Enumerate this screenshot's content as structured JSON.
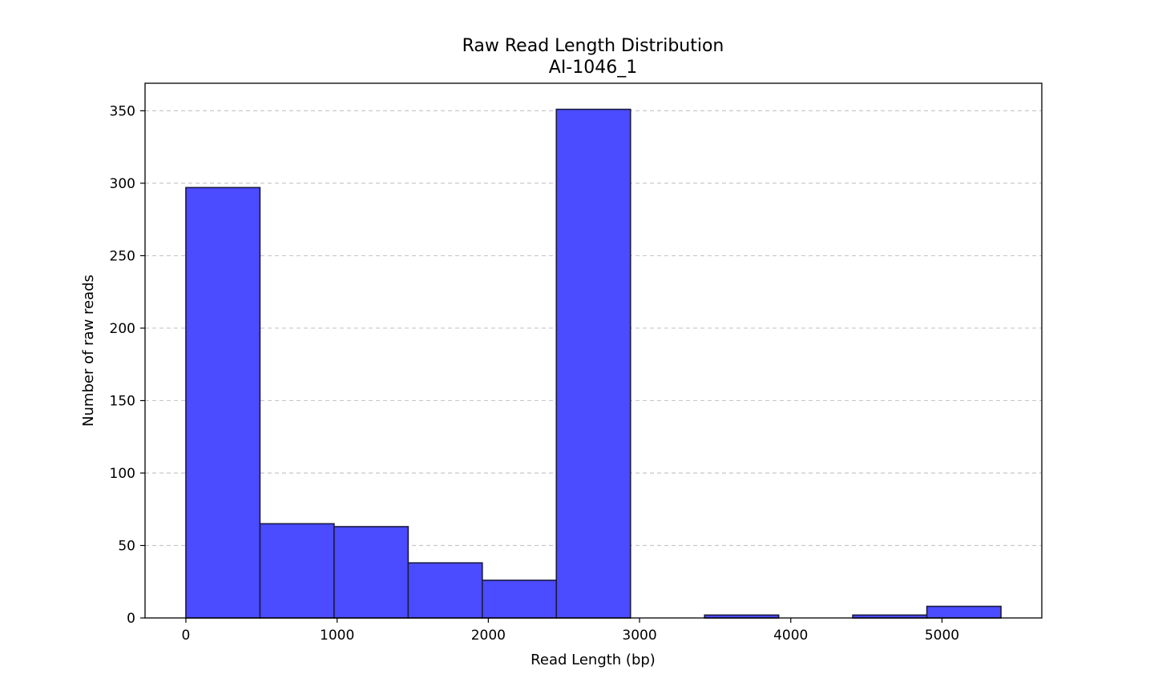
{
  "chart_data": {
    "type": "bar",
    "title": "Raw Read Length Distribution",
    "subtitle": "AI-1046_1",
    "xlabel": "Read Length (bp)",
    "ylabel": "Number of raw reads",
    "bins": [
      {
        "x0": 0,
        "x1": 490,
        "count": 297
      },
      {
        "x0": 490,
        "x1": 980,
        "count": 65
      },
      {
        "x0": 980,
        "x1": 1470,
        "count": 63
      },
      {
        "x0": 1470,
        "x1": 1960,
        "count": 38
      },
      {
        "x0": 1960,
        "x1": 2450,
        "count": 26
      },
      {
        "x0": 2450,
        "x1": 2940,
        "count": 351
      },
      {
        "x0": 2940,
        "x1": 3430,
        "count": 0
      },
      {
        "x0": 3430,
        "x1": 3920,
        "count": 2
      },
      {
        "x0": 3920,
        "x1": 4410,
        "count": 0
      },
      {
        "x0": 4410,
        "x1": 4900,
        "count": 2
      },
      {
        "x0": 4900,
        "x1": 5390,
        "count": 8
      }
    ],
    "xlim": [
      -270,
      5660
    ],
    "ylim": [
      0,
      369
    ],
    "xticks": [
      0,
      1000,
      2000,
      3000,
      4000,
      5000
    ],
    "xtick_labels": [
      "0",
      "1000",
      "2000",
      "3000",
      "4000",
      "5000"
    ],
    "yticks": [
      0,
      50,
      100,
      150,
      200,
      250,
      300,
      350
    ],
    "ytick_labels": [
      "0",
      "50",
      "100",
      "150",
      "200",
      "250",
      "300",
      "350"
    ],
    "grid": "y-dashed",
    "bar_color": "#4b4bff",
    "edge_color": "#1a1a40",
    "grid_color": "#c8c8c8"
  }
}
